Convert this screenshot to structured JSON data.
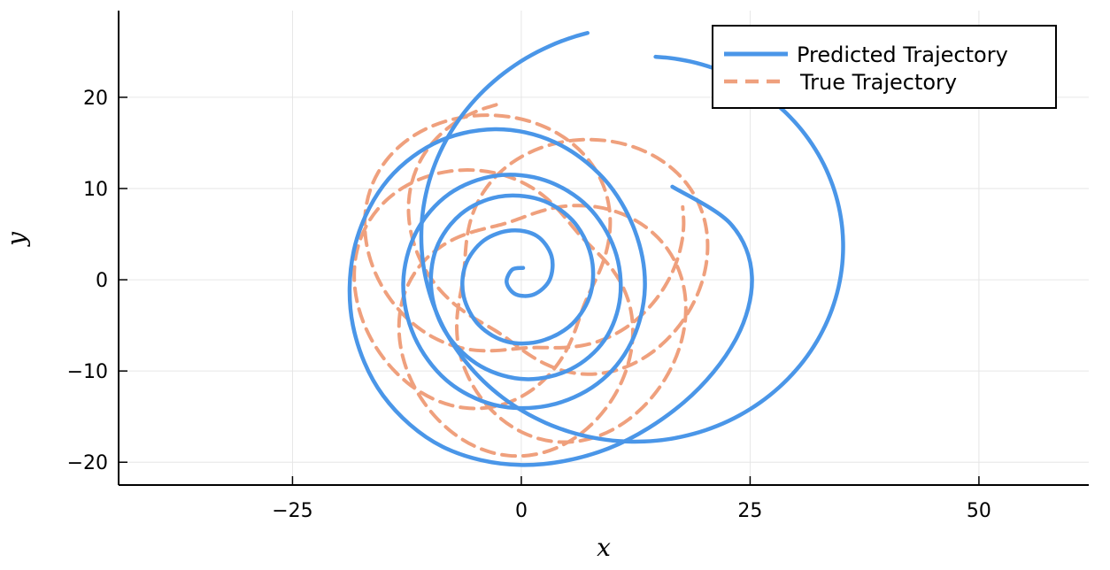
{
  "chart_data": {
    "type": "line",
    "xlabel": "x",
    "ylabel": "y",
    "xlim": [
      -44,
      62
    ],
    "ylim": [
      -22.5,
      29.5
    ],
    "xticks": [
      -25,
      0,
      25,
      50
    ],
    "yticks": [
      -20,
      -10,
      0,
      10,
      20
    ],
    "xtick_labels": [
      "−25",
      "0",
      "25",
      "50"
    ],
    "ytick_labels": [
      "−20",
      "−10",
      "0",
      "10",
      "20"
    ],
    "grid": true,
    "legend_position": "top-right",
    "series": [
      {
        "name": "Predicted Trajectory",
        "color": "#4a96e8",
        "style": "solid",
        "shape": "outward spiral",
        "points": [
          [
            16.5,
            10.2
          ],
          [
            22.9,
            6.1
          ],
          [
            25.2,
            0.3
          ],
          [
            23.4,
            -6.6
          ],
          [
            17.8,
            -13.4
          ],
          [
            9.5,
            -18.5
          ],
          [
            0.1,
            -20.3
          ],
          [
            -8.6,
            -18.3
          ],
          [
            -15.1,
            -12.7
          ],
          [
            -18.4,
            -5.0
          ],
          [
            -18.3,
            3.2
          ],
          [
            -15.1,
            10.3
          ],
          [
            -9.6,
            14.9
          ],
          [
            -2.9,
            16.5
          ],
          [
            3.6,
            15.1
          ],
          [
            9.0,
            11.1
          ],
          [
            12.4,
            5.4
          ],
          [
            13.5,
            -0.9
          ],
          [
            12.0,
            -6.9
          ],
          [
            8.3,
            -11.4
          ],
          [
            2.9,
            -13.8
          ],
          [
            -3.0,
            -13.7
          ],
          [
            -8.2,
            -11.0
          ],
          [
            -11.7,
            -6.2
          ],
          [
            -12.9,
            -0.4
          ],
          [
            -11.5,
            5.2
          ],
          [
            -7.9,
            9.4
          ],
          [
            -2.8,
            11.4
          ],
          [
            2.6,
            10.9
          ],
          [
            7.3,
            8.0
          ],
          [
            10.2,
            3.3
          ],
          [
            10.8,
            -1.9
          ],
          [
            9.1,
            -6.6
          ],
          [
            5.4,
            -9.8
          ],
          [
            0.5,
            -10.9
          ],
          [
            -4.4,
            -9.5
          ],
          [
            -8.1,
            -6.0
          ],
          [
            -9.8,
            -1.4
          ],
          [
            -9.3,
            3.4
          ],
          [
            -6.6,
            7.2
          ],
          [
            -2.5,
            9.1
          ],
          [
            2.0,
            8.8
          ],
          [
            5.6,
            6.5
          ],
          [
            7.6,
            2.7
          ],
          [
            7.6,
            -1.4
          ],
          [
            5.6,
            -4.8
          ],
          [
            2.2,
            -6.7
          ],
          [
            -1.5,
            -6.8
          ],
          [
            -4.6,
            -5.0
          ],
          [
            -6.3,
            -1.8
          ],
          [
            -6.1,
            1.6
          ],
          [
            -4.1,
            4.3
          ],
          [
            -1.1,
            5.4
          ],
          [
            1.7,
            4.8
          ],
          [
            3.3,
            2.6
          ],
          [
            3.1,
            0.0
          ],
          [
            1.4,
            -1.6
          ],
          [
            -0.6,
            -1.6
          ],
          [
            -1.6,
            -0.3
          ],
          [
            -1.0,
            1.1
          ],
          [
            0.2,
            1.3
          ]
        ]
      },
      {
        "name": "True Trajectory",
        "color": "#efa07d",
        "style": "dashed",
        "shape": "precessing rosette loops"
      }
    ]
  }
}
